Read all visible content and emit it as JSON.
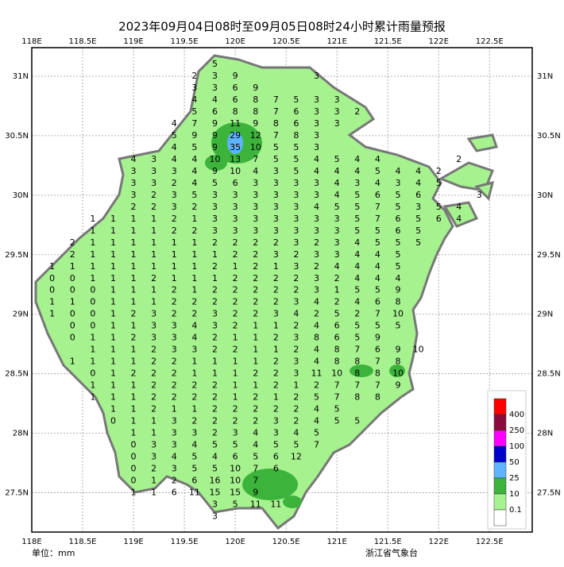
{
  "title": "2023年09月04日08时至09月05日08时24小时累计雨量预报",
  "unit": "单位：mm",
  "source": "浙江省气象台",
  "lonticks": [
    {
      "value": 118,
      "label": "118E"
    },
    {
      "value": 118.5,
      "label": "118.5E"
    },
    {
      "value": 119,
      "label": "119E"
    },
    {
      "value": 119.5,
      "label": "119.5E"
    },
    {
      "value": 120,
      "label": "120E"
    },
    {
      "value": 120.5,
      "label": "120.5E"
    },
    {
      "value": 121,
      "label": "121E"
    },
    {
      "value": 121.5,
      "label": "121.5E"
    },
    {
      "value": 122,
      "label": "122E"
    },
    {
      "value": 122.5,
      "label": "122.5E"
    }
  ],
  "latticks": [
    {
      "value": 31,
      "label": "31N"
    },
    {
      "value": 30.5,
      "label": "30.5N"
    },
    {
      "value": 30,
      "label": "30N"
    },
    {
      "value": 29.5,
      "label": "29.5N"
    },
    {
      "value": 29,
      "label": "29N"
    },
    {
      "value": 28.5,
      "label": "28.5N"
    },
    {
      "value": 28,
      "label": "28N"
    },
    {
      "value": 27.5,
      "label": "27.5N"
    }
  ],
  "lonlim": [
    118,
    122.92
  ],
  "latlim": [
    27.17,
    31.24
  ],
  "legend": {
    "colors": [
      "#ff0000",
      "#8b0a3c",
      "#ff00ff",
      "#0000cd",
      "#5fb4ff",
      "#3cb43c",
      "#a6f28f",
      "#ffffff"
    ],
    "labels": [
      400,
      250,
      100,
      50,
      25,
      10,
      0.1
    ]
  },
  "grid": {
    "lons": [
      118.2,
      118.4,
      118.6,
      118.8,
      119.0,
      119.2,
      119.4,
      119.6,
      119.8,
      120.0,
      120.2,
      120.4,
      120.6,
      120.8,
      121.0,
      121.2,
      121.4,
      121.6,
      121.8,
      122.0,
      122.2,
      122.4
    ],
    "rows": [
      {
        "lat": 31.1,
        "values": [
          null,
          null,
          null,
          null,
          null,
          null,
          null,
          null,
          5
        ]
      },
      {
        "lat": 31.0,
        "values": [
          null,
          null,
          null,
          null,
          null,
          null,
          null,
          2,
          3,
          9,
          null,
          null,
          null,
          3
        ]
      },
      {
        "lat": 30.9,
        "values": [
          null,
          null,
          null,
          null,
          null,
          null,
          null,
          3,
          3,
          6,
          9
        ]
      },
      {
        "lat": 30.8,
        "values": [
          null,
          null,
          null,
          null,
          null,
          null,
          null,
          4,
          4,
          6,
          8,
          7,
          5,
          3,
          3
        ]
      },
      {
        "lat": 30.7,
        "values": [
          null,
          null,
          null,
          null,
          null,
          null,
          null,
          5,
          6,
          8,
          8,
          7,
          6,
          3,
          3,
          2
        ]
      },
      {
        "lat": 30.6,
        "values": [
          null,
          null,
          null,
          null,
          null,
          null,
          4,
          7,
          9,
          11,
          9,
          8,
          6,
          3,
          3
        ]
      },
      {
        "lat": 30.5,
        "values": [
          null,
          null,
          null,
          null,
          null,
          null,
          5,
          9,
          9,
          29,
          12,
          7,
          8,
          3
        ]
      },
      {
        "lat": 30.4,
        "values": [
          null,
          null,
          null,
          null,
          null,
          null,
          4,
          5,
          9,
          35,
          10,
          5,
          5,
          3
        ]
      },
      {
        "lat": 30.3,
        "values": [
          null,
          null,
          null,
          null,
          4,
          3,
          4,
          4,
          10,
          13,
          7,
          5,
          5,
          4,
          5,
          4,
          4,
          null,
          null,
          null,
          2
        ]
      },
      {
        "lat": 30.2,
        "values": [
          null,
          null,
          null,
          null,
          3,
          3,
          3,
          4,
          9,
          10,
          4,
          3,
          5,
          4,
          4,
          4,
          5,
          4,
          4,
          2
        ]
      },
      {
        "lat": 30.1,
        "values": [
          null,
          null,
          null,
          null,
          3,
          3,
          2,
          4,
          5,
          6,
          3,
          3,
          3,
          3,
          4,
          3,
          4,
          3,
          4,
          5
        ]
      },
      {
        "lat": 30.0,
        "values": [
          null,
          null,
          null,
          null,
          3,
          2,
          3,
          5,
          3,
          3,
          3,
          3,
          3,
          3,
          4,
          5,
          6,
          5,
          6,
          null,
          null,
          3
        ]
      },
      {
        "lat": 29.9,
        "values": [
          null,
          null,
          null,
          null,
          2,
          2,
          3,
          2,
          3,
          3,
          3,
          3,
          3,
          4,
          5,
          5,
          7,
          5,
          3,
          5,
          4
        ]
      },
      {
        "lat": 29.8,
        "values": [
          null,
          null,
          1,
          1,
          1,
          1,
          2,
          1,
          3,
          3,
          3,
          3,
          3,
          3,
          3,
          5,
          7,
          6,
          5,
          6,
          4
        ]
      },
      {
        "lat": 29.7,
        "values": [
          null,
          null,
          1,
          1,
          1,
          1,
          2,
          2,
          3,
          3,
          3,
          3,
          3,
          3,
          3,
          5,
          5,
          6,
          5
        ]
      },
      {
        "lat": 29.6,
        "values": [
          null,
          2,
          1,
          1,
          1,
          1,
          1,
          1,
          2,
          2,
          2,
          2,
          3,
          2,
          3,
          4,
          5,
          5,
          5
        ]
      },
      {
        "lat": 29.5,
        "values": [
          null,
          2,
          1,
          1,
          1,
          1,
          1,
          1,
          1,
          2,
          2,
          3,
          2,
          3,
          3,
          4,
          4,
          5
        ]
      },
      {
        "lat": 29.4,
        "values": [
          1,
          1,
          1,
          1,
          1,
          1,
          1,
          1,
          2,
          1,
          2,
          1,
          3,
          2,
          4,
          4,
          4,
          5
        ]
      },
      {
        "lat": 29.3,
        "values": [
          0,
          0,
          1,
          1,
          1,
          2,
          1,
          1,
          1,
          2,
          2,
          2,
          2,
          3,
          2,
          4,
          4,
          4
        ]
      },
      {
        "lat": 29.2,
        "values": [
          0,
          0,
          0,
          1,
          1,
          1,
          2,
          1,
          2,
          2,
          2,
          2,
          2,
          3,
          1,
          5,
          5,
          9
        ]
      },
      {
        "lat": 29.1,
        "values": [
          1,
          1,
          0,
          1,
          1,
          1,
          2,
          2,
          2,
          2,
          2,
          2,
          3,
          4,
          2,
          4,
          6,
          8
        ]
      },
      {
        "lat": 29.0,
        "values": [
          1,
          0,
          0,
          1,
          2,
          3,
          2,
          2,
          3,
          2,
          2,
          3,
          4,
          2,
          5,
          2,
          7,
          10
        ]
      },
      {
        "lat": 28.9,
        "values": [
          null,
          0,
          0,
          1,
          1,
          3,
          3,
          4,
          3,
          2,
          1,
          1,
          2,
          4,
          6,
          5,
          5,
          5
        ]
      },
      {
        "lat": 28.8,
        "values": [
          null,
          0,
          1,
          1,
          2,
          3,
          3,
          4,
          2,
          1,
          1,
          2,
          3,
          8,
          6,
          5,
          9
        ]
      },
      {
        "lat": 28.7,
        "values": [
          null,
          null,
          1,
          1,
          1,
          2,
          3,
          3,
          2,
          2,
          1,
          1,
          2,
          4,
          8,
          7,
          6,
          9,
          10
        ]
      },
      {
        "lat": 28.6,
        "values": [
          null,
          1,
          1,
          1,
          1,
          2,
          2,
          1,
          1,
          1,
          1,
          2,
          3,
          4,
          8,
          8,
          7,
          8
        ]
      },
      {
        "lat": 28.5,
        "values": [
          null,
          null,
          0,
          1,
          2,
          2,
          2,
          1,
          1,
          1,
          2,
          2,
          3,
          11,
          10,
          8,
          8,
          10
        ]
      },
      {
        "lat": 28.4,
        "values": [
          null,
          null,
          1,
          1,
          1,
          2,
          2,
          2,
          2,
          1,
          1,
          2,
          1,
          2,
          7,
          7,
          7,
          9
        ]
      },
      {
        "lat": 28.3,
        "values": [
          null,
          null,
          1,
          1,
          1,
          2,
          2,
          2,
          2,
          1,
          2,
          1,
          2,
          5,
          7,
          8,
          8
        ]
      },
      {
        "lat": 28.2,
        "values": [
          null,
          null,
          null,
          1,
          1,
          2,
          1,
          1,
          2,
          2,
          2,
          2,
          2,
          4,
          5
        ]
      },
      {
        "lat": 28.1,
        "values": [
          null,
          null,
          null,
          0,
          1,
          1,
          3,
          2,
          2,
          2,
          2,
          3,
          2,
          4,
          5,
          5
        ]
      },
      {
        "lat": 28.0,
        "values": [
          null,
          null,
          null,
          null,
          1,
          1,
          3,
          3,
          2,
          3,
          4,
          3,
          4,
          5
        ]
      },
      {
        "lat": 27.9,
        "values": [
          null,
          null,
          null,
          null,
          0,
          3,
          3,
          4,
          5,
          5,
          4,
          5,
          5,
          7
        ]
      },
      {
        "lat": 27.8,
        "values": [
          null,
          null,
          null,
          null,
          0,
          3,
          4,
          5,
          4,
          6,
          5,
          6,
          12
        ]
      },
      {
        "lat": 27.7,
        "values": [
          null,
          null,
          null,
          null,
          0,
          2,
          3,
          5,
          5,
          10,
          7,
          6
        ]
      },
      {
        "lat": 27.6,
        "values": [
          null,
          null,
          null,
          null,
          0,
          1,
          2,
          6,
          16,
          10,
          7
        ]
      },
      {
        "lat": 27.5,
        "values": [
          null,
          null,
          null,
          null,
          1,
          1,
          6,
          11,
          15,
          15,
          9
        ]
      },
      {
        "lat": 27.4,
        "values": [
          null,
          null,
          null,
          null,
          null,
          null,
          null,
          null,
          3,
          5,
          11,
          11
        ]
      },
      {
        "lat": 27.3,
        "values": [
          null,
          null,
          null,
          null,
          null,
          null,
          null,
          null,
          3
        ]
      }
    ]
  }
}
